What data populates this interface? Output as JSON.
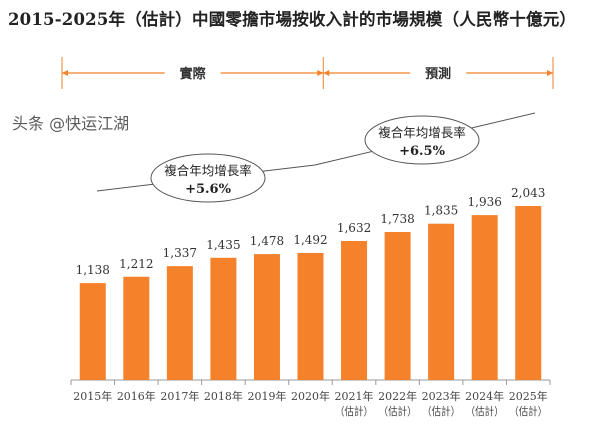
{
  "chart_data": {
    "type": "bar",
    "title": "2015-2025年（估計）中國零擔市場按收入計的市場規模（人民幣十億元）",
    "categories": [
      "2015年",
      "2016年",
      "2017年",
      "2018年",
      "2019年",
      "2020年",
      "2021年\n(估計)",
      "2022年\n(估計)",
      "2023年\n(估計)",
      "2024年\n(估計)",
      "2025年\n(估計)"
    ],
    "category_lines": [
      [
        "2015年"
      ],
      [
        "2016年"
      ],
      [
        "2017年"
      ],
      [
        "2018年"
      ],
      [
        "2019年"
      ],
      [
        "2020年"
      ],
      [
        "2021年",
        "（估計）"
      ],
      [
        "2022年",
        "（估計）"
      ],
      [
        "2023年",
        "（估計）"
      ],
      [
        "2024年",
        "（估計）"
      ],
      [
        "2025年",
        "（估計）"
      ]
    ],
    "values": [
      1138,
      1212,
      1337,
      1435,
      1478,
      1492,
      1632,
      1738,
      1835,
      1936,
      2043
    ],
    "value_labels": [
      "1,138",
      "1,212",
      "1,337",
      "1,435",
      "1,478",
      "1,492",
      "1,632",
      "1,738",
      "1,835",
      "1,936",
      "2,043"
    ],
    "bar_color": "#F5822A",
    "ylim": [
      0,
      2043
    ],
    "periods": [
      {
        "label": "實際",
        "from": "2015年",
        "to": "2020年"
      },
      {
        "label": "預測",
        "from": "2021年",
        "to": "2025年"
      }
    ],
    "annotations": [
      {
        "label": "複合年均增長率",
        "value": "+5.6%"
      },
      {
        "label": "複合年均增長率",
        "value": "+6.5%"
      }
    ],
    "grid": false
  },
  "watermark": "头条 @快运江湖"
}
